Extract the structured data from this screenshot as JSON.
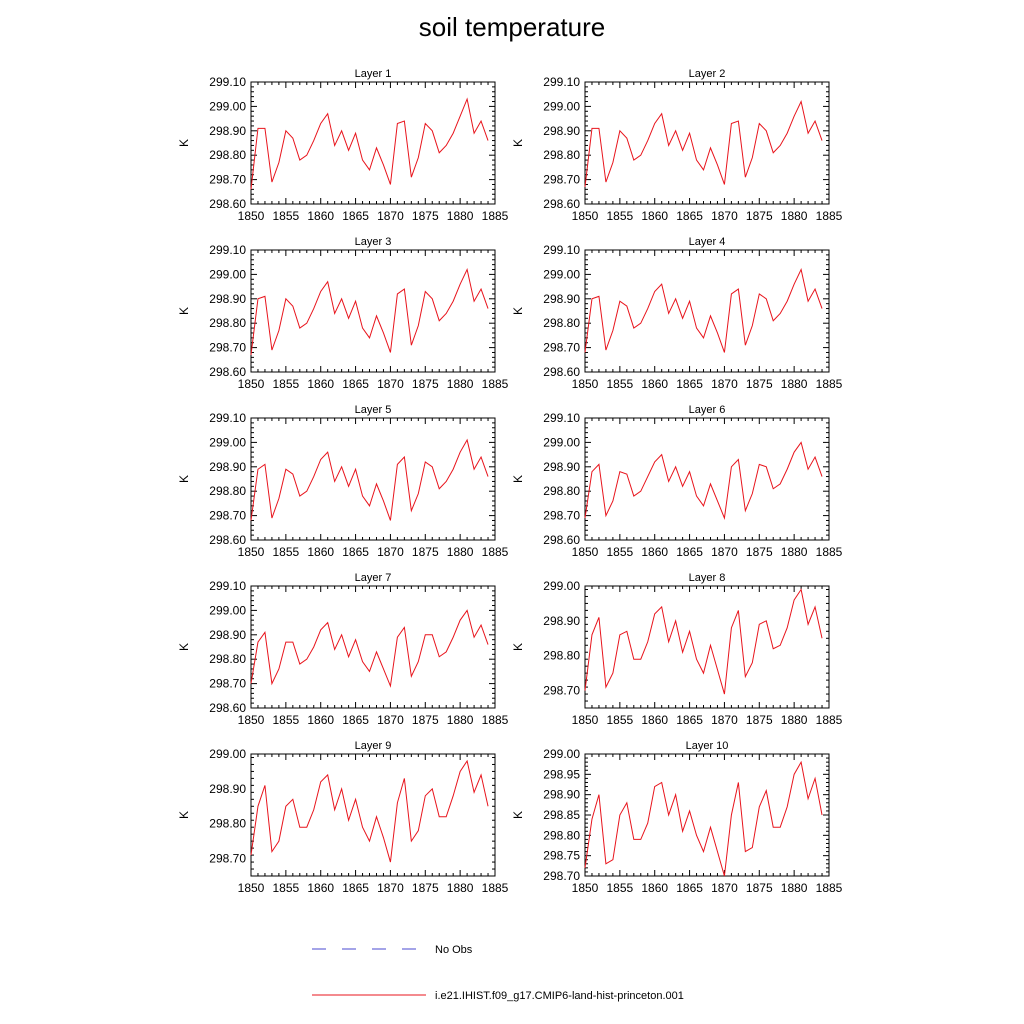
{
  "figure": {
    "title": "soil temperature"
  },
  "colors": {
    "model": "#e8141c",
    "obs": "#4a4ad0",
    "axis": "#000000"
  },
  "legend": {
    "entries": [
      {
        "label": "No Obs",
        "style": "dashed",
        "color": "#4a4ad0"
      },
      {
        "label": "i.e21.IHIST.f09_g17.CMIP6-land-hist-princeton.001",
        "style": "solid",
        "color": "#e8141c"
      }
    ]
  },
  "chart_data": [
    {
      "type": "line",
      "title": "Layer 1",
      "ylabel": "K",
      "xlim": [
        1850,
        1885
      ],
      "ylim": [
        298.6,
        299.1
      ],
      "xticks": [
        1850,
        1855,
        1860,
        1865,
        1870,
        1875,
        1880,
        1885
      ],
      "yticks": [
        "298.60",
        "298.70",
        "298.80",
        "298.90",
        "299.00",
        "299.10"
      ],
      "series": [
        {
          "x": [
            1850,
            1851,
            1852,
            1853,
            1854,
            1855,
            1856,
            1857,
            1858,
            1859,
            1860,
            1861,
            1862,
            1863,
            1864,
            1865,
            1866,
            1867,
            1868,
            1869,
            1870,
            1871,
            1872,
            1873,
            1874,
            1875,
            1876,
            1877,
            1878,
            1879,
            1880,
            1881,
            1882,
            1883,
            1884
          ],
          "values": [
            298.66,
            298.91,
            298.91,
            298.69,
            298.77,
            298.9,
            298.87,
            298.78,
            298.8,
            298.86,
            298.93,
            298.97,
            298.84,
            298.9,
            298.82,
            298.89,
            298.78,
            298.74,
            298.83,
            298.76,
            298.68,
            298.93,
            298.94,
            298.71,
            298.79,
            298.93,
            298.9,
            298.81,
            298.84,
            298.89,
            298.96,
            299.03,
            298.89,
            298.94,
            298.86
          ]
        }
      ]
    },
    {
      "type": "line",
      "title": "Layer 2",
      "ylabel": "K",
      "xlim": [
        1850,
        1885
      ],
      "ylim": [
        298.6,
        299.1
      ],
      "xticks": [
        1850,
        1855,
        1860,
        1865,
        1870,
        1875,
        1880,
        1885
      ],
      "yticks": [
        "298.60",
        "298.70",
        "298.80",
        "298.90",
        "299.00",
        "299.10"
      ],
      "series": [
        {
          "x": [
            1850,
            1851,
            1852,
            1853,
            1854,
            1855,
            1856,
            1857,
            1858,
            1859,
            1860,
            1861,
            1862,
            1863,
            1864,
            1865,
            1866,
            1867,
            1868,
            1869,
            1870,
            1871,
            1872,
            1873,
            1874,
            1875,
            1876,
            1877,
            1878,
            1879,
            1880,
            1881,
            1882,
            1883,
            1884
          ],
          "values": [
            298.67,
            298.91,
            298.91,
            298.69,
            298.77,
            298.9,
            298.87,
            298.78,
            298.8,
            298.86,
            298.93,
            298.97,
            298.84,
            298.9,
            298.82,
            298.89,
            298.78,
            298.74,
            298.83,
            298.76,
            298.68,
            298.93,
            298.94,
            298.71,
            298.79,
            298.93,
            298.9,
            298.81,
            298.84,
            298.89,
            298.96,
            299.02,
            298.89,
            298.94,
            298.86
          ]
        }
      ]
    },
    {
      "type": "line",
      "title": "Layer 3",
      "ylabel": "K",
      "xlim": [
        1850,
        1885
      ],
      "ylim": [
        298.6,
        299.1
      ],
      "xticks": [
        1850,
        1855,
        1860,
        1865,
        1870,
        1875,
        1880,
        1885
      ],
      "yticks": [
        "298.60",
        "298.70",
        "298.80",
        "298.90",
        "299.00",
        "299.10"
      ],
      "series": [
        {
          "x": [
            1850,
            1851,
            1852,
            1853,
            1854,
            1855,
            1856,
            1857,
            1858,
            1859,
            1860,
            1861,
            1862,
            1863,
            1864,
            1865,
            1866,
            1867,
            1868,
            1869,
            1870,
            1871,
            1872,
            1873,
            1874,
            1875,
            1876,
            1877,
            1878,
            1879,
            1880,
            1881,
            1882,
            1883,
            1884
          ],
          "values": [
            298.67,
            298.9,
            298.91,
            298.69,
            298.77,
            298.9,
            298.87,
            298.78,
            298.8,
            298.86,
            298.93,
            298.97,
            298.84,
            298.9,
            298.82,
            298.89,
            298.78,
            298.74,
            298.83,
            298.76,
            298.68,
            298.92,
            298.94,
            298.71,
            298.79,
            298.93,
            298.9,
            298.81,
            298.84,
            298.89,
            298.96,
            299.02,
            298.89,
            298.94,
            298.86
          ]
        }
      ]
    },
    {
      "type": "line",
      "title": "Layer 4",
      "ylabel": "K",
      "xlim": [
        1850,
        1885
      ],
      "ylim": [
        298.6,
        299.1
      ],
      "xticks": [
        1850,
        1855,
        1860,
        1865,
        1870,
        1875,
        1880,
        1885
      ],
      "yticks": [
        "298.60",
        "298.70",
        "298.80",
        "298.90",
        "299.00",
        "299.10"
      ],
      "series": [
        {
          "x": [
            1850,
            1851,
            1852,
            1853,
            1854,
            1855,
            1856,
            1857,
            1858,
            1859,
            1860,
            1861,
            1862,
            1863,
            1864,
            1865,
            1866,
            1867,
            1868,
            1869,
            1870,
            1871,
            1872,
            1873,
            1874,
            1875,
            1876,
            1877,
            1878,
            1879,
            1880,
            1881,
            1882,
            1883,
            1884
          ],
          "values": [
            298.68,
            298.9,
            298.91,
            298.69,
            298.77,
            298.89,
            298.87,
            298.78,
            298.8,
            298.86,
            298.93,
            298.96,
            298.84,
            298.9,
            298.82,
            298.89,
            298.78,
            298.74,
            298.83,
            298.76,
            298.68,
            298.92,
            298.94,
            298.71,
            298.79,
            298.92,
            298.9,
            298.81,
            298.84,
            298.89,
            298.96,
            299.02,
            298.89,
            298.94,
            298.86
          ]
        }
      ]
    },
    {
      "type": "line",
      "title": "Layer 5",
      "ylabel": "K",
      "xlim": [
        1850,
        1885
      ],
      "ylim": [
        298.6,
        299.1
      ],
      "xticks": [
        1850,
        1855,
        1860,
        1865,
        1870,
        1875,
        1880,
        1885
      ],
      "yticks": [
        "298.60",
        "298.70",
        "298.80",
        "298.90",
        "299.00",
        "299.10"
      ],
      "series": [
        {
          "x": [
            1850,
            1851,
            1852,
            1853,
            1854,
            1855,
            1856,
            1857,
            1858,
            1859,
            1860,
            1861,
            1862,
            1863,
            1864,
            1865,
            1866,
            1867,
            1868,
            1869,
            1870,
            1871,
            1872,
            1873,
            1874,
            1875,
            1876,
            1877,
            1878,
            1879,
            1880,
            1881,
            1882,
            1883,
            1884
          ],
          "values": [
            298.68,
            298.89,
            298.91,
            298.69,
            298.77,
            298.89,
            298.87,
            298.78,
            298.8,
            298.86,
            298.93,
            298.96,
            298.84,
            298.9,
            298.82,
            298.89,
            298.78,
            298.74,
            298.83,
            298.76,
            298.68,
            298.91,
            298.94,
            298.72,
            298.79,
            298.92,
            298.9,
            298.81,
            298.84,
            298.89,
            298.96,
            299.01,
            298.89,
            298.94,
            298.86
          ]
        }
      ]
    },
    {
      "type": "line",
      "title": "Layer 6",
      "ylabel": "K",
      "xlim": [
        1850,
        1885
      ],
      "ylim": [
        298.6,
        299.1
      ],
      "xticks": [
        1850,
        1855,
        1860,
        1865,
        1870,
        1875,
        1880,
        1885
      ],
      "yticks": [
        "298.60",
        "298.70",
        "298.80",
        "298.90",
        "299.00",
        "299.10"
      ],
      "series": [
        {
          "x": [
            1850,
            1851,
            1852,
            1853,
            1854,
            1855,
            1856,
            1857,
            1858,
            1859,
            1860,
            1861,
            1862,
            1863,
            1864,
            1865,
            1866,
            1867,
            1868,
            1869,
            1870,
            1871,
            1872,
            1873,
            1874,
            1875,
            1876,
            1877,
            1878,
            1879,
            1880,
            1881,
            1882,
            1883,
            1884
          ],
          "values": [
            298.69,
            298.88,
            298.91,
            298.7,
            298.76,
            298.88,
            298.87,
            298.78,
            298.8,
            298.86,
            298.92,
            298.95,
            298.84,
            298.9,
            298.82,
            298.88,
            298.78,
            298.74,
            298.83,
            298.76,
            298.69,
            298.9,
            298.93,
            298.72,
            298.79,
            298.91,
            298.9,
            298.81,
            298.83,
            298.89,
            298.96,
            299.0,
            298.89,
            298.94,
            298.86
          ]
        }
      ]
    },
    {
      "type": "line",
      "title": "Layer 7",
      "ylabel": "K",
      "xlim": [
        1850,
        1885
      ],
      "ylim": [
        298.6,
        299.1
      ],
      "xticks": [
        1850,
        1855,
        1860,
        1865,
        1870,
        1875,
        1880,
        1885
      ],
      "yticks": [
        "298.60",
        "298.70",
        "298.80",
        "298.90",
        "299.00",
        "299.10"
      ],
      "series": [
        {
          "x": [
            1850,
            1851,
            1852,
            1853,
            1854,
            1855,
            1856,
            1857,
            1858,
            1859,
            1860,
            1861,
            1862,
            1863,
            1864,
            1865,
            1866,
            1867,
            1868,
            1869,
            1870,
            1871,
            1872,
            1873,
            1874,
            1875,
            1876,
            1877,
            1878,
            1879,
            1880,
            1881,
            1882,
            1883,
            1884
          ],
          "values": [
            298.7,
            298.87,
            298.91,
            298.7,
            298.76,
            298.87,
            298.87,
            298.78,
            298.8,
            298.85,
            298.92,
            298.95,
            298.84,
            298.9,
            298.81,
            298.88,
            298.79,
            298.75,
            298.83,
            298.76,
            298.69,
            298.89,
            298.93,
            298.73,
            298.79,
            298.9,
            298.9,
            298.81,
            298.83,
            298.89,
            298.96,
            299.0,
            298.89,
            298.94,
            298.86
          ]
        }
      ]
    },
    {
      "type": "line",
      "title": "Layer 8",
      "ylabel": "K",
      "xlim": [
        1850,
        1885
      ],
      "ylim": [
        298.65,
        299.0
      ],
      "xticks": [
        1850,
        1855,
        1860,
        1865,
        1870,
        1875,
        1880,
        1885
      ],
      "yticks": [
        "298.70",
        "298.80",
        "298.90",
        "299.00"
      ],
      "series": [
        {
          "x": [
            1850,
            1851,
            1852,
            1853,
            1854,
            1855,
            1856,
            1857,
            1858,
            1859,
            1860,
            1861,
            1862,
            1863,
            1864,
            1865,
            1866,
            1867,
            1868,
            1869,
            1870,
            1871,
            1872,
            1873,
            1874,
            1875,
            1876,
            1877,
            1878,
            1879,
            1880,
            1881,
            1882,
            1883,
            1884
          ],
          "values": [
            298.7,
            298.86,
            298.91,
            298.71,
            298.75,
            298.86,
            298.87,
            298.79,
            298.79,
            298.84,
            298.92,
            298.94,
            298.84,
            298.9,
            298.81,
            298.87,
            298.79,
            298.75,
            298.83,
            298.76,
            298.69,
            298.88,
            298.93,
            298.74,
            298.78,
            298.89,
            298.9,
            298.82,
            298.83,
            298.88,
            298.96,
            298.99,
            298.89,
            298.94,
            298.85
          ]
        }
      ]
    },
    {
      "type": "line",
      "title": "Layer 9",
      "ylabel": "K",
      "xlim": [
        1850,
        1885
      ],
      "ylim": [
        298.65,
        299.0
      ],
      "xticks": [
        1850,
        1855,
        1860,
        1865,
        1870,
        1875,
        1880,
        1885
      ],
      "yticks": [
        "298.70",
        "298.80",
        "298.90",
        "299.00"
      ],
      "series": [
        {
          "x": [
            1850,
            1851,
            1852,
            1853,
            1854,
            1855,
            1856,
            1857,
            1858,
            1859,
            1860,
            1861,
            1862,
            1863,
            1864,
            1865,
            1866,
            1867,
            1868,
            1869,
            1870,
            1871,
            1872,
            1873,
            1874,
            1875,
            1876,
            1877,
            1878,
            1879,
            1880,
            1881,
            1882,
            1883,
            1884
          ],
          "values": [
            298.71,
            298.85,
            298.91,
            298.72,
            298.75,
            298.85,
            298.87,
            298.79,
            298.79,
            298.84,
            298.92,
            298.94,
            298.84,
            298.9,
            298.81,
            298.87,
            298.79,
            298.75,
            298.82,
            298.76,
            298.69,
            298.86,
            298.93,
            298.75,
            298.78,
            298.88,
            298.9,
            298.82,
            298.82,
            298.88,
            298.95,
            298.98,
            298.89,
            298.94,
            298.85
          ]
        }
      ]
    },
    {
      "type": "line",
      "title": "Layer 10",
      "ylabel": "K",
      "xlim": [
        1850,
        1885
      ],
      "ylim": [
        298.7,
        299.0
      ],
      "xticks": [
        1850,
        1855,
        1860,
        1865,
        1870,
        1875,
        1880,
        1885
      ],
      "yticks": [
        "298.70",
        "298.75",
        "298.80",
        "298.85",
        "298.90",
        "298.95",
        "299.00"
      ],
      "series": [
        {
          "x": [
            1850,
            1851,
            1852,
            1853,
            1854,
            1855,
            1856,
            1857,
            1858,
            1859,
            1860,
            1861,
            1862,
            1863,
            1864,
            1865,
            1866,
            1867,
            1868,
            1869,
            1870,
            1871,
            1872,
            1873,
            1874,
            1875,
            1876,
            1877,
            1878,
            1879,
            1880,
            1881,
            1882,
            1883,
            1884
          ],
          "values": [
            298.72,
            298.84,
            298.9,
            298.73,
            298.74,
            298.85,
            298.88,
            298.79,
            298.79,
            298.83,
            298.92,
            298.93,
            298.85,
            298.9,
            298.81,
            298.86,
            298.8,
            298.76,
            298.82,
            298.76,
            298.7,
            298.85,
            298.93,
            298.76,
            298.77,
            298.87,
            298.91,
            298.82,
            298.82,
            298.87,
            298.95,
            298.98,
            298.89,
            298.94,
            298.85
          ]
        }
      ]
    }
  ]
}
